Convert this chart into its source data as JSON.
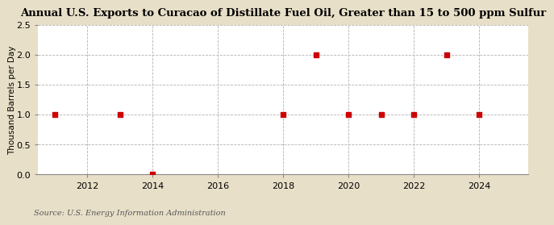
{
  "title": "Annual U.S. Exports to Curacao of Distillate Fuel Oil, Greater than 15 to 500 ppm Sulfur",
  "ylabel": "Thousand Barrels per Day",
  "source": "Source: U.S. Energy Information Administration",
  "background_color": "#e8dfc8",
  "plot_background_color": "#ffffff",
  "x_data": [
    2011,
    2013,
    2014,
    2018,
    2019,
    2020,
    2021,
    2022,
    2023,
    2024
  ],
  "y_data": [
    1.0,
    1.0,
    0.0,
    1.0,
    2.0,
    1.0,
    1.0,
    1.0,
    2.0,
    1.0
  ],
  "marker_color": "#cc0000",
  "marker_size": 4,
  "xlim": [
    2010.5,
    2025.5
  ],
  "ylim": [
    0.0,
    2.5
  ],
  "yticks": [
    0.0,
    0.5,
    1.0,
    1.5,
    2.0,
    2.5
  ],
  "xticks": [
    2012,
    2014,
    2016,
    2018,
    2020,
    2022,
    2024
  ],
  "grid_color": "#aaaaaa",
  "title_fontsize": 9.5,
  "axis_fontsize": 7.5,
  "tick_fontsize": 8,
  "source_fontsize": 7
}
